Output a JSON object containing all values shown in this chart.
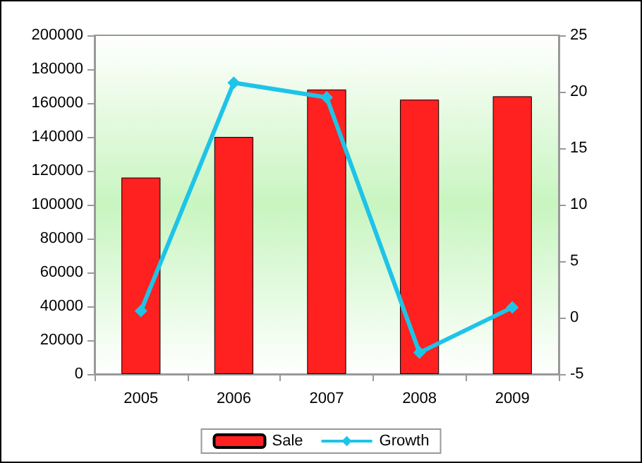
{
  "chart_data": {
    "type": "bar",
    "categories": [
      "2005",
      "2006",
      "2007",
      "2008",
      "2009"
    ],
    "series": [
      {
        "name": "Sale",
        "color": "#ff2020",
        "values": [
          116000,
          140000,
          168000,
          162000,
          164000
        ]
      },
      {
        "name": "Growth",
        "type": "line",
        "axis": "y2",
        "color": "#1ec4e8",
        "values": [
          0.6,
          20.8,
          19.5,
          -3.1,
          0.9
        ]
      }
    ],
    "ylim": [
      0,
      200000
    ],
    "yticks": [
      0,
      20000,
      40000,
      60000,
      80000,
      100000,
      120000,
      140000,
      160000,
      180000,
      200000
    ],
    "y2lim": [
      -5,
      25
    ],
    "y2ticks": [
      -5,
      0,
      5,
      10,
      15,
      20,
      25
    ],
    "legend": "bottom",
    "marker": "diamond",
    "grid": false
  }
}
